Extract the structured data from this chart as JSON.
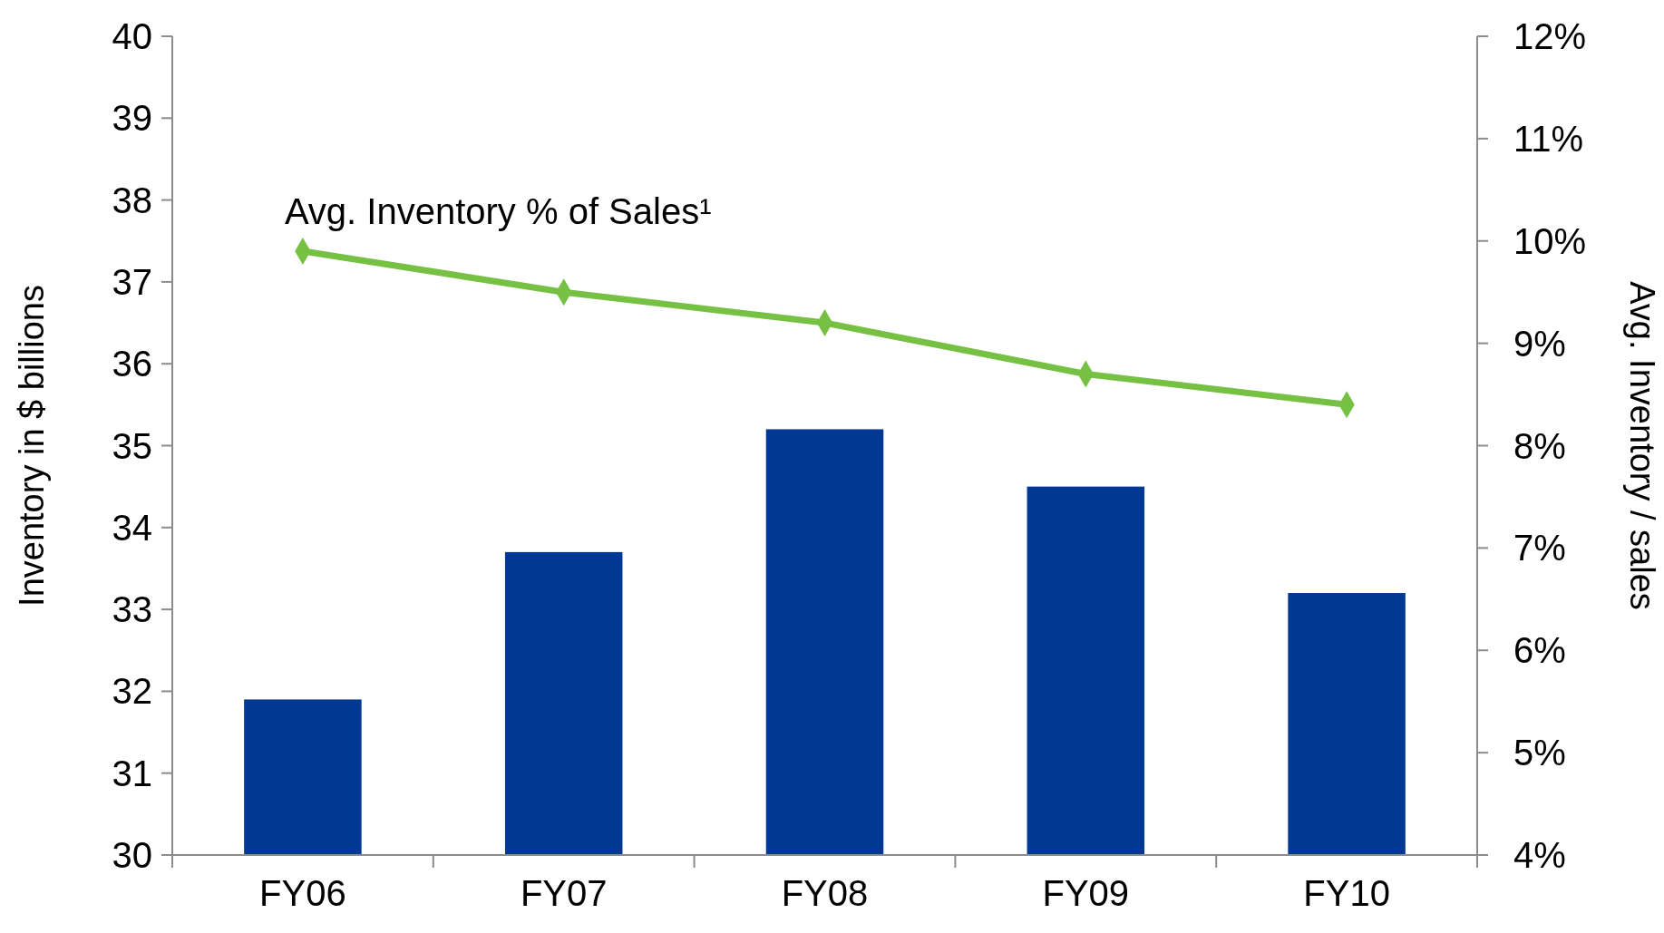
{
  "chart_data": {
    "type": "bar",
    "categories": [
      "FY06",
      "FY07",
      "FY08",
      "FY09",
      "FY10"
    ],
    "series": [
      {
        "color": "#003893",
        "values": [
          31.9,
          33.7,
          35.2,
          34.5,
          33.2
        ]
      },
      {
        "type": "line",
        "axis": "y2",
        "name": "Avg. Inventory % of Sales¹",
        "color": "#76c043",
        "marker": "diamond",
        "values": [
          9.9,
          9.5,
          9.2,
          8.7,
          8.4
        ]
      }
    ],
    "ylabel": "Inventory in $ billions",
    "y2label": "Avg. Inventory / sales",
    "ylim": [
      30,
      40
    ],
    "yticks": [
      30,
      31,
      32,
      33,
      34,
      35,
      36,
      37,
      38,
      39,
      40
    ],
    "y2lim": [
      4,
      12
    ],
    "y2ticks": [
      {
        "value": 4,
        "label": "4%"
      },
      {
        "value": 5,
        "label": "5%"
      },
      {
        "value": 6,
        "label": "6%"
      },
      {
        "value": 7,
        "label": "7%"
      },
      {
        "value": 8,
        "label": "8%"
      },
      {
        "value": 9,
        "label": "9%"
      },
      {
        "value": 10,
        "label": "10%"
      },
      {
        "value": 11,
        "label": "11%"
      },
      {
        "value": 12,
        "label": "12%"
      }
    ],
    "grid": false
  }
}
